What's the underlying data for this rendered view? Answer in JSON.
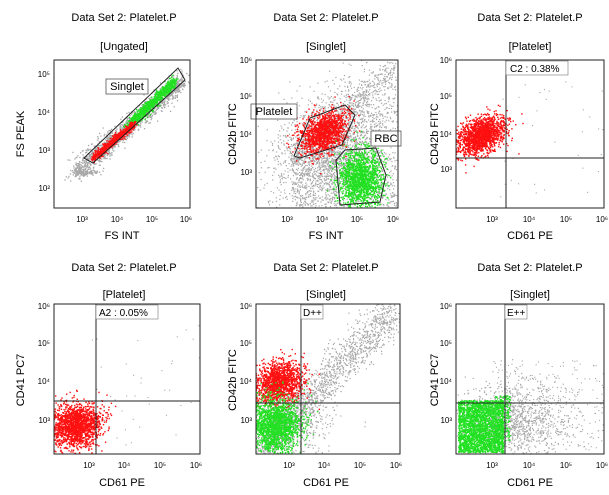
{
  "colors": {
    "gray": "#a8a8a8",
    "red": "#ff1010",
    "green": "#22e022",
    "axis": "#222222",
    "gate": "#222222"
  },
  "panels": [
    {
      "dataset": "Data Set 2: Platelet.P",
      "gate_name": "[Ungated]",
      "xlabel": "FS INT",
      "ylabel": "FS PEAK",
      "xticks": [
        "10³",
        "10⁴",
        "10⁵",
        "10⁶"
      ],
      "yticks": [
        "10²",
        "10³",
        "10⁴",
        "10⁵"
      ],
      "region_labels": [
        "Singlet"
      ],
      "quad_label": ""
    },
    {
      "dataset": "Data Set 2: Platelet.P",
      "gate_name": "[Singlet]",
      "xlabel": "FS INT",
      "ylabel": "CD42b FITC",
      "xticks": [
        "10³",
        "10⁴",
        "10⁵",
        "10⁶"
      ],
      "yticks": [
        "10³",
        "10⁴",
        "10⁵",
        "10⁶"
      ],
      "region_labels": [
        "Platelet",
        "RBC"
      ],
      "quad_label": ""
    },
    {
      "dataset": "Data Set 2: Platelet.P",
      "gate_name": "[Platelet]",
      "xlabel": "CD61 PE",
      "ylabel": "CD42b FITC",
      "xticks": [
        "10³",
        "10⁴",
        "10⁵",
        "10⁶"
      ],
      "yticks": [
        "10³",
        "10⁴",
        "10⁵",
        "10⁶"
      ],
      "region_labels": [],
      "quad_label": "C2 : 0.38%"
    },
    {
      "dataset": "Data Set 2: Platelet.P",
      "gate_name": "[Platelet]",
      "xlabel": "CD61 PE",
      "ylabel": "CD41 PC7",
      "xticks": [
        "10³",
        "10⁴",
        "10⁵",
        "10⁶"
      ],
      "yticks": [
        "10³",
        "10⁴",
        "10⁵",
        "10⁶"
      ],
      "region_labels": [],
      "quad_label": "A2 : 0.05%"
    },
    {
      "dataset": "Data Set 2: Platelet.P",
      "gate_name": "[Singlet]",
      "xlabel": "CD61 PE",
      "ylabel": "CD42b FITC",
      "xticks": [
        "10³",
        "10⁴",
        "10⁵",
        "10⁶"
      ],
      "yticks": [
        "10³",
        "10⁴",
        "10⁵",
        "10⁶"
      ],
      "region_labels": [],
      "quad_label": "D++"
    },
    {
      "dataset": "Data Set 2: Platelet.P",
      "gate_name": "[Singlet]",
      "xlabel": "CD61 PE",
      "ylabel": "CD41 PC7",
      "xticks": [
        "10³",
        "10⁴",
        "10⁵",
        "10⁶"
      ],
      "yticks": [
        "10³",
        "10⁴",
        "10⁵",
        "10⁶"
      ],
      "region_labels": [],
      "quad_label": "E++"
    }
  ],
  "chart_data": [
    {
      "type": "scatter",
      "xscale": "log",
      "yscale": "log",
      "xlim": [
        200,
        1000000
      ],
      "ylim": [
        50,
        200000
      ],
      "populations": [
        {
          "color": "gray",
          "x_center": 4000,
          "y_center": 800,
          "note": "diagonal"
        },
        {
          "color": "red",
          "x_center": 3000,
          "y_center": 1200
        },
        {
          "color": "green",
          "x_center": 60000,
          "y_center": 12000
        }
      ]
    },
    {
      "type": "scatter",
      "xscale": "log",
      "yscale": "log",
      "xlim": [
        200,
        1000000
      ],
      "ylim": [
        200,
        1000000
      ],
      "populations": [
        {
          "color": "gray",
          "x_center": 50000,
          "y_center": 15000
        },
        {
          "color": "red",
          "x_center": 15000,
          "y_center": 20000
        },
        {
          "color": "green",
          "x_center": 150000,
          "y_center": 1500
        }
      ]
    },
    {
      "type": "scatter",
      "xscale": "log",
      "yscale": "log",
      "xlim": [
        100,
        1000000
      ],
      "ylim": [
        100,
        1000000
      ],
      "quadrant": {
        "x": 2500,
        "y": 2500
      },
      "populations": [
        {
          "color": "red",
          "x_center": 600,
          "y_center": 20000
        }
      ]
    },
    {
      "type": "scatter",
      "xscale": "log",
      "yscale": "log",
      "xlim": [
        100,
        1000000
      ],
      "ylim": [
        100,
        1000000
      ],
      "quadrant": {
        "x": 2500,
        "y": 2500
      },
      "populations": [
        {
          "color": "red",
          "x_center": 500,
          "y_center": 900
        }
      ]
    },
    {
      "type": "scatter",
      "xscale": "log",
      "yscale": "log",
      "xlim": [
        100,
        1000000
      ],
      "ylim": [
        100,
        1000000
      ],
      "quadrant": {
        "x": 2500,
        "y": 2500
      },
      "populations": [
        {
          "color": "gray",
          "x_center": 5000,
          "y_center": 5000
        },
        {
          "color": "red",
          "x_center": 600,
          "y_center": 8000
        },
        {
          "color": "green",
          "x_center": 500,
          "y_center": 800
        }
      ]
    },
    {
      "type": "scatter",
      "xscale": "log",
      "yscale": "log",
      "xlim": [
        100,
        1000000
      ],
      "ylim": [
        100,
        1000000
      ],
      "quadrant": {
        "x": 2500,
        "y": 2500
      },
      "populations": [
        {
          "color": "gray",
          "x_center": 4000,
          "y_center": 1500
        },
        {
          "color": "green",
          "x_center": 600,
          "y_center": 700
        }
      ]
    }
  ]
}
